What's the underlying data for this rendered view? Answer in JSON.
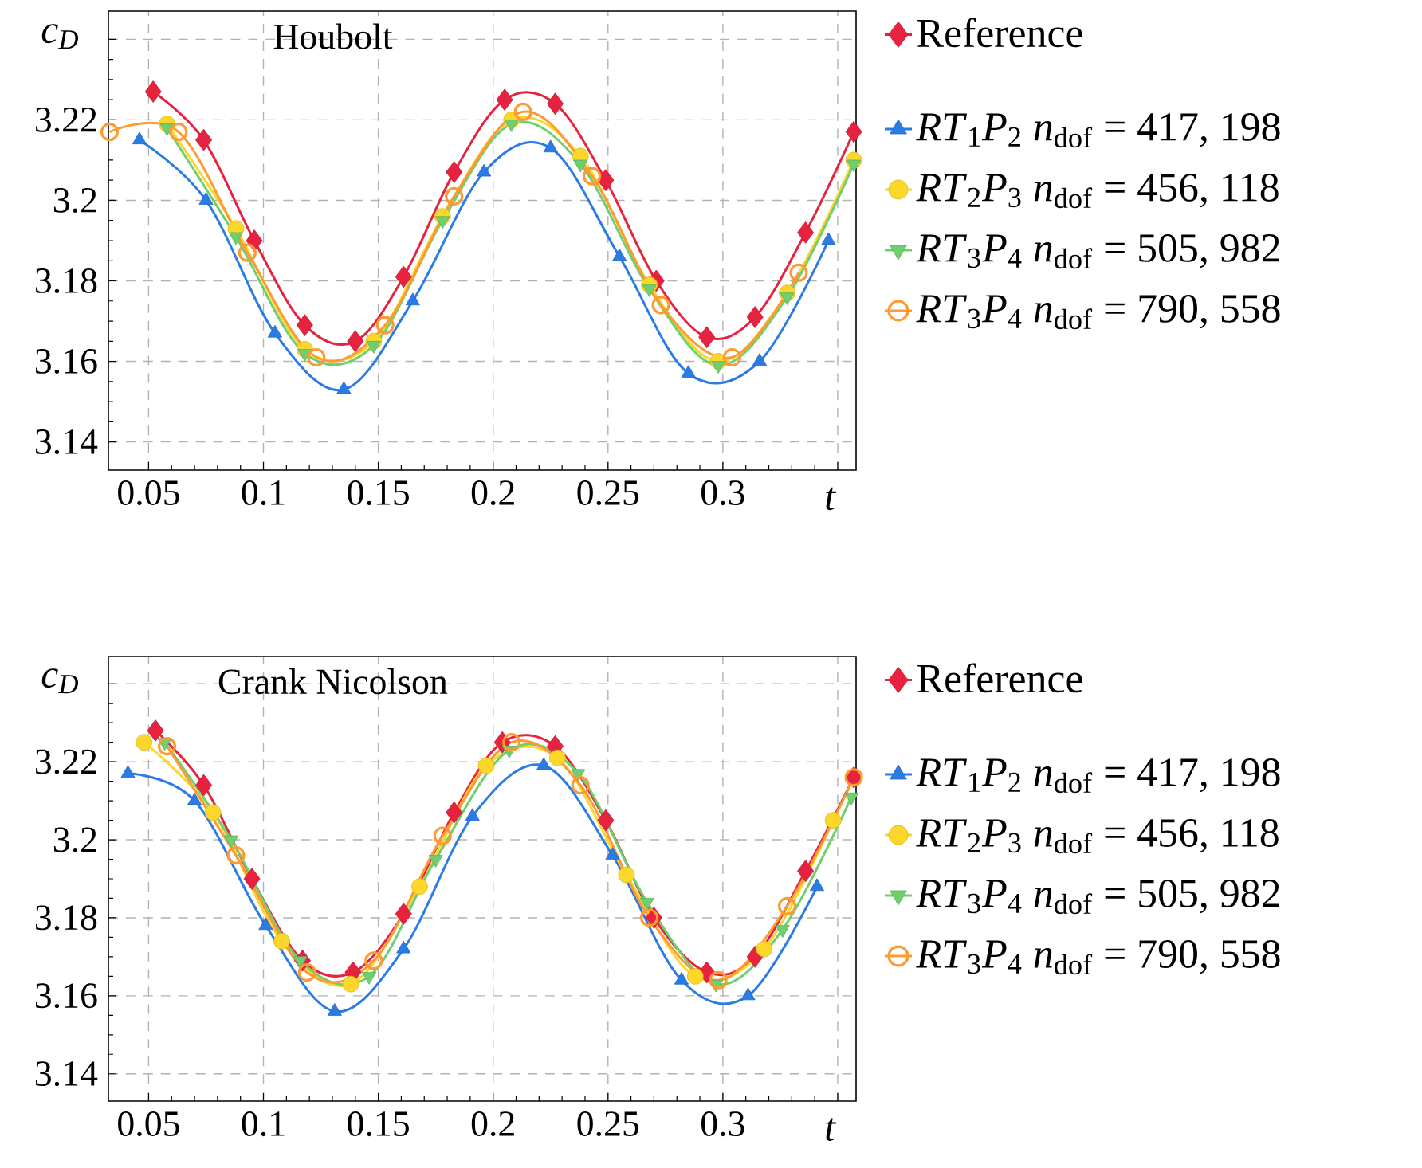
{
  "chart_data": [
    {
      "type": "line",
      "title": "Houbolt",
      "xlabel": "t",
      "ylabel": "c$_{D}$",
      "grid": true,
      "legend": "right",
      "line_style": "solid",
      "xlim": [
        0.0325,
        0.358
      ],
      "ylim": [
        3.133,
        3.247
      ],
      "xticks": [
        0.05,
        0.1,
        0.15,
        0.2,
        0.25,
        0.3,
        {
          "value": 0.35,
          "label": null
        }
      ],
      "yticks": [
        3.14,
        3.16,
        3.18,
        3.2,
        3.22,
        {
          "value": 3.24,
          "label": null
        }
      ],
      "series": [
        {
          "name": "Reference",
          "color": "#e6223f",
          "marker": "diamond",
          "x": [
            0.052,
            0.074,
            0.096,
            0.118,
            0.14,
            0.161,
            0.183,
            0.205,
            0.227,
            0.249,
            0.271,
            0.293,
            0.314,
            0.336,
            0.357
          ],
          "values": [
            3.227,
            3.215,
            3.19,
            3.169,
            3.165,
            3.181,
            3.207,
            3.225,
            3.224,
            3.205,
            3.18,
            3.166,
            3.171,
            3.192,
            3.217
          ]
        },
        {
          "name": "*RT*$_{1}$*P*$_{2}$ *n*$_{dof}$ = 417, 198",
          "color": "#2a7be4",
          "marker": "triangle",
          "x": [
            0.046,
            0.075,
            0.105,
            0.135,
            0.165,
            0.196,
            0.225,
            0.255,
            0.285,
            0.316,
            0.346
          ],
          "values": [
            3.215,
            3.2,
            3.167,
            3.153,
            3.175,
            3.207,
            3.213,
            3.186,
            3.157,
            3.16,
            3.19
          ]
        },
        {
          "name": "*RT*$_{2}$*P*$_{3}$ *n*$_{dof}$ = 456, 118",
          "color": "#fcd72a",
          "marker": "circle",
          "x": [
            0.058,
            0.088,
            0.118,
            0.148,
            0.178,
            0.208,
            0.238,
            0.268,
            0.298,
            0.328,
            0.357
          ],
          "values": [
            3.219,
            3.193,
            3.163,
            3.165,
            3.196,
            3.22,
            3.211,
            3.179,
            3.16,
            3.177,
            3.21
          ]
        },
        {
          "name": "*RT*$_{3}$*P*$_{4}$ *n*$_{dof}$ = 505, 982",
          "color": "#6fcf6f",
          "marker": "triangle-down",
          "x": [
            0.058,
            0.088,
            0.118,
            0.148,
            0.178,
            0.208,
            0.238,
            0.268,
            0.298,
            0.328,
            0.357
          ],
          "values": [
            3.218,
            3.191,
            3.162,
            3.164,
            3.195,
            3.219,
            3.209,
            3.178,
            3.159,
            3.176,
            3.209
          ]
        },
        {
          "name": "*RT*$_{3}$*P*$_{4}$ *n*$_{dof}$ = 790, 558",
          "color": "#fd9a32",
          "marker": "circle-open",
          "x": [
            0.033,
            0.063,
            0.093,
            0.123,
            0.153,
            0.183,
            0.213,
            0.243,
            0.273,
            0.304,
            0.333
          ],
          "values": [
            3.217,
            3.217,
            3.187,
            3.161,
            3.169,
            3.201,
            3.222,
            3.206,
            3.174,
            3.161,
            3.182
          ]
        }
      ]
    },
    {
      "type": "line",
      "title": "Crank Nicolson",
      "xlabel": "t",
      "ylabel": "c$_{D}$",
      "grid": true,
      "legend": "right",
      "line_style": "solid",
      "xlim": [
        0.0325,
        0.358
      ],
      "ylim": [
        3.133,
        3.247
      ],
      "xticks": [
        0.05,
        0.1,
        0.15,
        0.2,
        0.25,
        0.3,
        {
          "value": 0.35,
          "label": null
        }
      ],
      "yticks": [
        3.14,
        3.16,
        3.18,
        3.2,
        3.22,
        {
          "value": 3.24,
          "label": null
        }
      ],
      "series": [
        {
          "name": "Reference",
          "color": "#e6223f",
          "marker": "diamond",
          "x": [
            0.053,
            0.074,
            0.095,
            0.117,
            0.139,
            0.161,
            0.183,
            0.204,
            0.227,
            0.249,
            0.27,
            0.293,
            0.314,
            0.336,
            0.357
          ],
          "values": [
            3.228,
            3.214,
            3.19,
            3.169,
            3.166,
            3.181,
            3.207,
            3.225,
            3.224,
            3.205,
            3.18,
            3.166,
            3.17,
            3.192,
            3.216
          ]
        },
        {
          "name": "*RT*$_{1}$*P*$_{2}$ *n*$_{dof}$ = 417, 198",
          "color": "#2a7be4",
          "marker": "triangle",
          "x": [
            0.041,
            0.07,
            0.101,
            0.131,
            0.161,
            0.191,
            0.222,
            0.252,
            0.282,
            0.311,
            0.341
          ],
          "values": [
            3.217,
            3.21,
            3.178,
            3.156,
            3.172,
            3.206,
            3.219,
            3.196,
            3.164,
            3.16,
            3.188
          ]
        },
        {
          "name": "*RT*$_{2}$*P*$_{3}$ *n*$_{dof}$ = 456, 118",
          "color": "#fcd72a",
          "marker": "circle",
          "x": [
            0.048,
            0.078,
            0.108,
            0.138,
            0.168,
            0.197,
            0.228,
            0.258,
            0.288,
            0.318,
            0.348
          ],
          "values": [
            3.225,
            3.207,
            3.174,
            3.163,
            3.188,
            3.219,
            3.221,
            3.191,
            3.165,
            3.172,
            3.205
          ]
        },
        {
          "name": "*RT*$_{3}$*P*$_{4}$ *n*$_{dof}$ = 505, 982",
          "color": "#6fcf6f",
          "marker": "triangle-down",
          "x": [
            0.057,
            0.086,
            0.116,
            0.146,
            0.175,
            0.207,
            0.237,
            0.267,
            0.297,
            0.326,
            0.356
          ],
          "values": [
            3.225,
            3.2,
            3.169,
            3.165,
            3.195,
            3.223,
            3.217,
            3.184,
            3.163,
            3.177,
            3.211
          ]
        },
        {
          "name": "*RT*$_{3}$*P*$_{4}$ *n*$_{dof}$ = 790, 558",
          "color": "#fd9a32",
          "marker": "circle-open",
          "x": [
            0.058,
            0.088,
            0.119,
            0.148,
            0.178,
            0.208,
            0.238,
            0.268,
            0.298,
            0.328,
            0.357
          ],
          "values": [
            3.224,
            3.196,
            3.166,
            3.169,
            3.201,
            3.225,
            3.214,
            3.18,
            3.164,
            3.183,
            3.216
          ]
        }
      ]
    }
  ]
}
